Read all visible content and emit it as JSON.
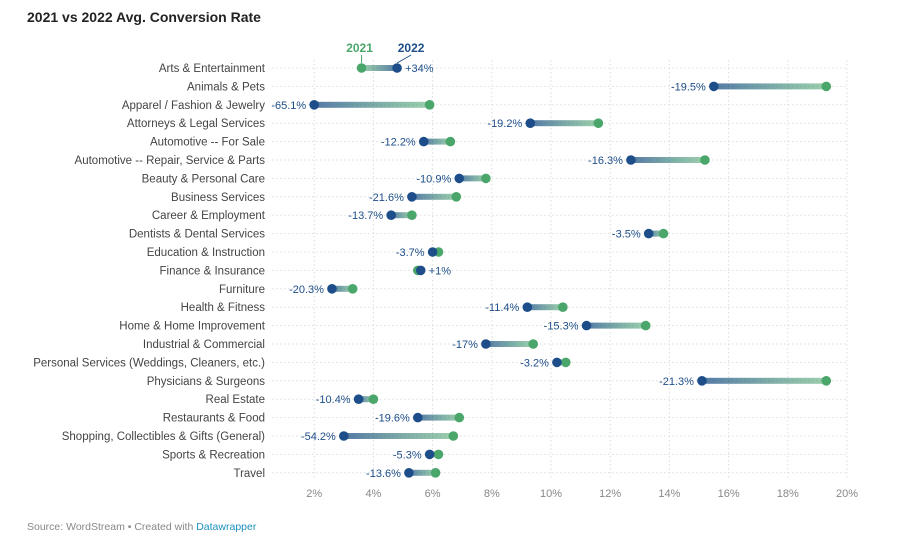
{
  "title": "2021 vs 2022 Avg. Conversion Rate",
  "footer": {
    "source_text": "Source: WordStream • Created with ",
    "link_text": "Datawrapper"
  },
  "colors": {
    "y2021": "#4aa66a",
    "y2022": "#1d4e89",
    "grid": "#dddddd",
    "tick": "#888888",
    "category": "#444444"
  },
  "chart_data": {
    "type": "dot-range",
    "legend": [
      "2021",
      "2022"
    ],
    "xlim": [
      0,
      20
    ],
    "x_ticks": [
      "2%",
      "4%",
      "6%",
      "8%",
      "10%",
      "12%",
      "14%",
      "16%",
      "18%",
      "20%"
    ],
    "categories": [
      "Arts & Entertainment",
      "Animals & Pets",
      "Apparel / Fashion & Jewelry",
      "Attorneys & Legal Services",
      "Automotive -- For Sale",
      "Automotive -- Repair, Service & Parts",
      "Beauty & Personal Care",
      "Business Services",
      "Career & Employment",
      "Dentists & Dental Services",
      "Education & Instruction",
      "Finance & Insurance",
      "Furniture",
      "Health & Fitness",
      "Home & Home Improvement",
      "Industrial & Commercial",
      "Personal Services (Weddings, Cleaners, etc.)",
      "Physicians & Surgeons",
      "Real Estate",
      "Restaurants & Food",
      "Shopping, Collectibles & Gifts (General)",
      "Sports & Recreation",
      "Travel"
    ],
    "series": [
      {
        "name": "2021",
        "values": [
          3.6,
          19.3,
          5.9,
          11.6,
          6.6,
          15.2,
          7.8,
          6.8,
          5.3,
          13.8,
          6.2,
          5.5,
          3.3,
          10.4,
          13.2,
          9.4,
          10.5,
          19.3,
          4.0,
          6.9,
          6.7,
          6.2,
          6.1
        ]
      },
      {
        "name": "2022",
        "values": [
          4.8,
          15.5,
          2.0,
          9.3,
          5.7,
          12.7,
          6.9,
          5.3,
          4.6,
          13.3,
          6.0,
          5.6,
          2.6,
          9.2,
          11.2,
          7.8,
          10.2,
          15.1,
          3.5,
          5.5,
          3.0,
          5.9,
          5.2
        ]
      }
    ],
    "change_labels": [
      "+34%",
      "-19.5%",
      "-65.1%",
      "-19.2%",
      "-12.2%",
      "-16.3%",
      "-10.9%",
      "-21.6%",
      "-13.7%",
      "-3.5%",
      "-3.7%",
      "+1%",
      "-20.3%",
      "-11.4%",
      "-15.3%",
      "-17%",
      "-3.2%",
      "-21.3%",
      "-10.4%",
      "-19.6%",
      "-54.2%",
      "-5.3%",
      "-13.6%"
    ]
  }
}
